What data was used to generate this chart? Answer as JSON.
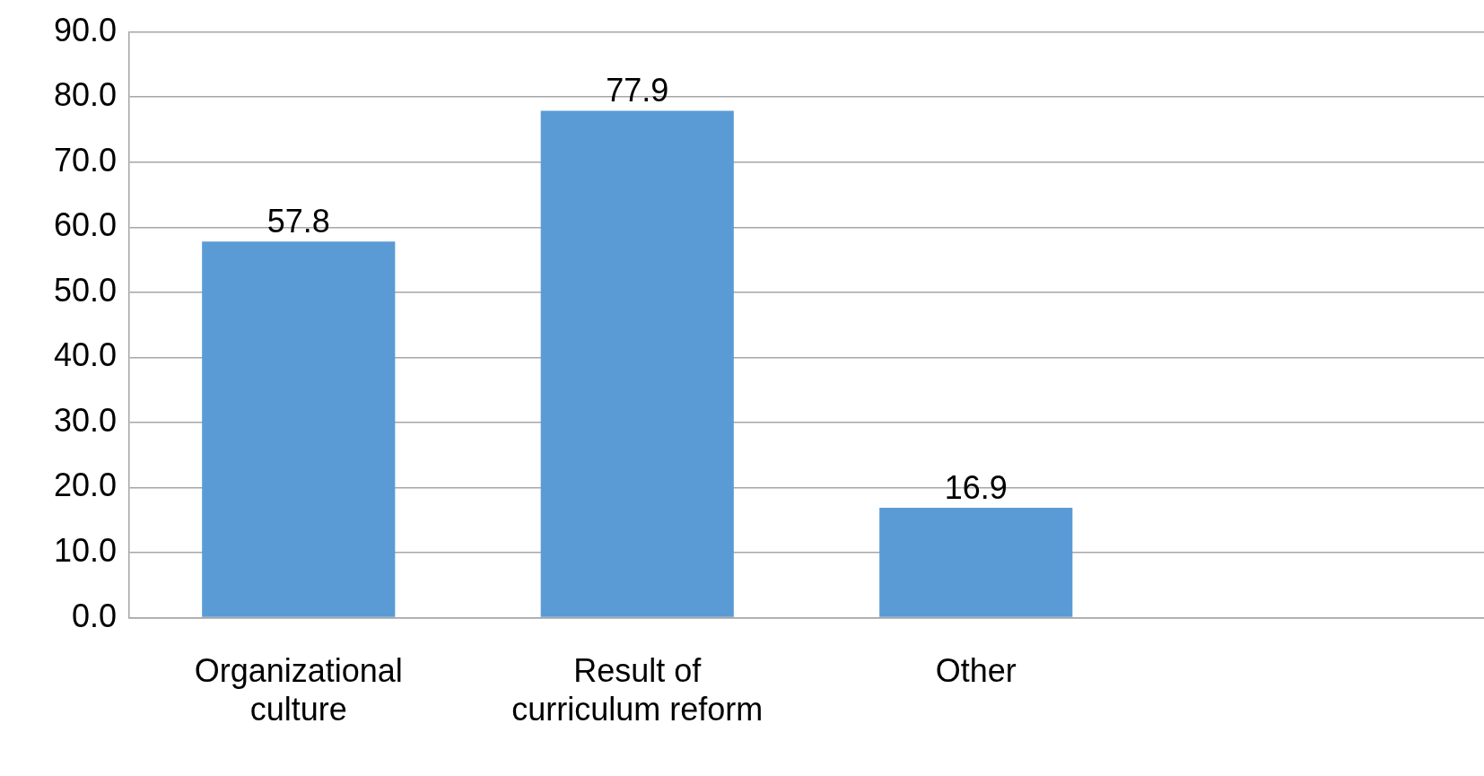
{
  "chart_data": {
    "type": "bar",
    "categories": [
      "Organizational culture",
      "Result of curriculum reform",
      "Other",
      null
    ],
    "values": [
      57.8,
      77.9,
      16.9,
      null
    ],
    "color": "#5b9bd5",
    "ylim": [
      0,
      90
    ],
    "yticks": [
      {
        "value": 0,
        "label": "0.0"
      },
      {
        "value": 10,
        "label": "10.0"
      },
      {
        "value": 20,
        "label": "20.0"
      },
      {
        "value": 30,
        "label": "30.0"
      },
      {
        "value": 40,
        "label": "40.0"
      },
      {
        "value": 50,
        "label": "50.0"
      },
      {
        "value": 60,
        "label": "60.0"
      },
      {
        "value": 70,
        "label": "70.0"
      },
      {
        "value": 80,
        "label": "80.0"
      },
      {
        "value": 90,
        "label": "90.0"
      }
    ],
    "grid": "y",
    "legend": false,
    "data_labels": true
  }
}
